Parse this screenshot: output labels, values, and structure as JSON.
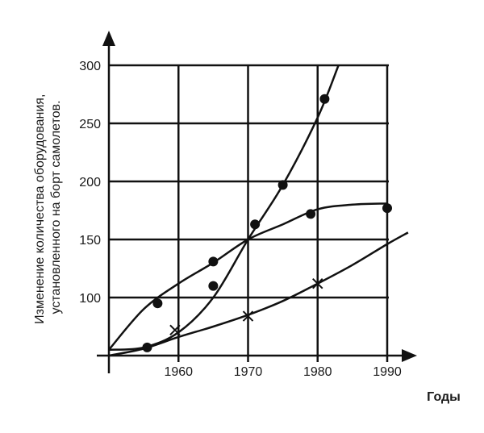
{
  "chart_data": {
    "type": "line",
    "xlabel": "Годы",
    "ylabel_lines": [
      "Изменение количества оборудования,",
      "установленного на борт самолетов."
    ],
    "x_ticks": [
      1960,
      1970,
      1980,
      1990
    ],
    "y_ticks": [
      100,
      150,
      200,
      250,
      300
    ],
    "xlim": [
      1950,
      1990
    ],
    "ylim": [
      50,
      300
    ],
    "grid": true,
    "legend": "none",
    "series": [
      {
        "marker": "circle",
        "line": [
          [
            1950,
            55
          ],
          [
            1955,
            57
          ],
          [
            1960,
            70
          ],
          [
            1965,
            100
          ],
          [
            1970,
            150
          ],
          [
            1975,
            197
          ],
          [
            1980,
            255
          ],
          [
            1983,
            300
          ]
        ],
        "points": [
          [
            1955.5,
            57
          ],
          [
            1965,
            110
          ],
          [
            1971,
            163
          ],
          [
            1975,
            197
          ],
          [
            1981,
            271
          ]
        ]
      },
      {
        "marker": "circle",
        "line": [
          [
            1950,
            55
          ],
          [
            1955,
            90
          ],
          [
            1960,
            112
          ],
          [
            1965,
            130
          ],
          [
            1970,
            150
          ],
          [
            1975,
            163
          ],
          [
            1980,
            176
          ],
          [
            1985,
            180
          ],
          [
            1990,
            181
          ]
        ],
        "points": [
          [
            1957,
            95
          ],
          [
            1965,
            131
          ],
          [
            1979,
            172
          ],
          [
            1990,
            177
          ]
        ]
      },
      {
        "marker": "cross",
        "line": [
          [
            1950,
            50
          ],
          [
            1955,
            56
          ],
          [
            1960,
            66
          ],
          [
            1965,
            75
          ],
          [
            1970,
            85
          ],
          [
            1975,
            97
          ],
          [
            1980,
            112
          ],
          [
            1985,
            128
          ],
          [
            1990,
            146
          ],
          [
            1993,
            156
          ]
        ],
        "points": [
          [
            1959.5,
            72
          ],
          [
            1970,
            84
          ],
          [
            1980,
            112
          ]
        ]
      }
    ]
  }
}
